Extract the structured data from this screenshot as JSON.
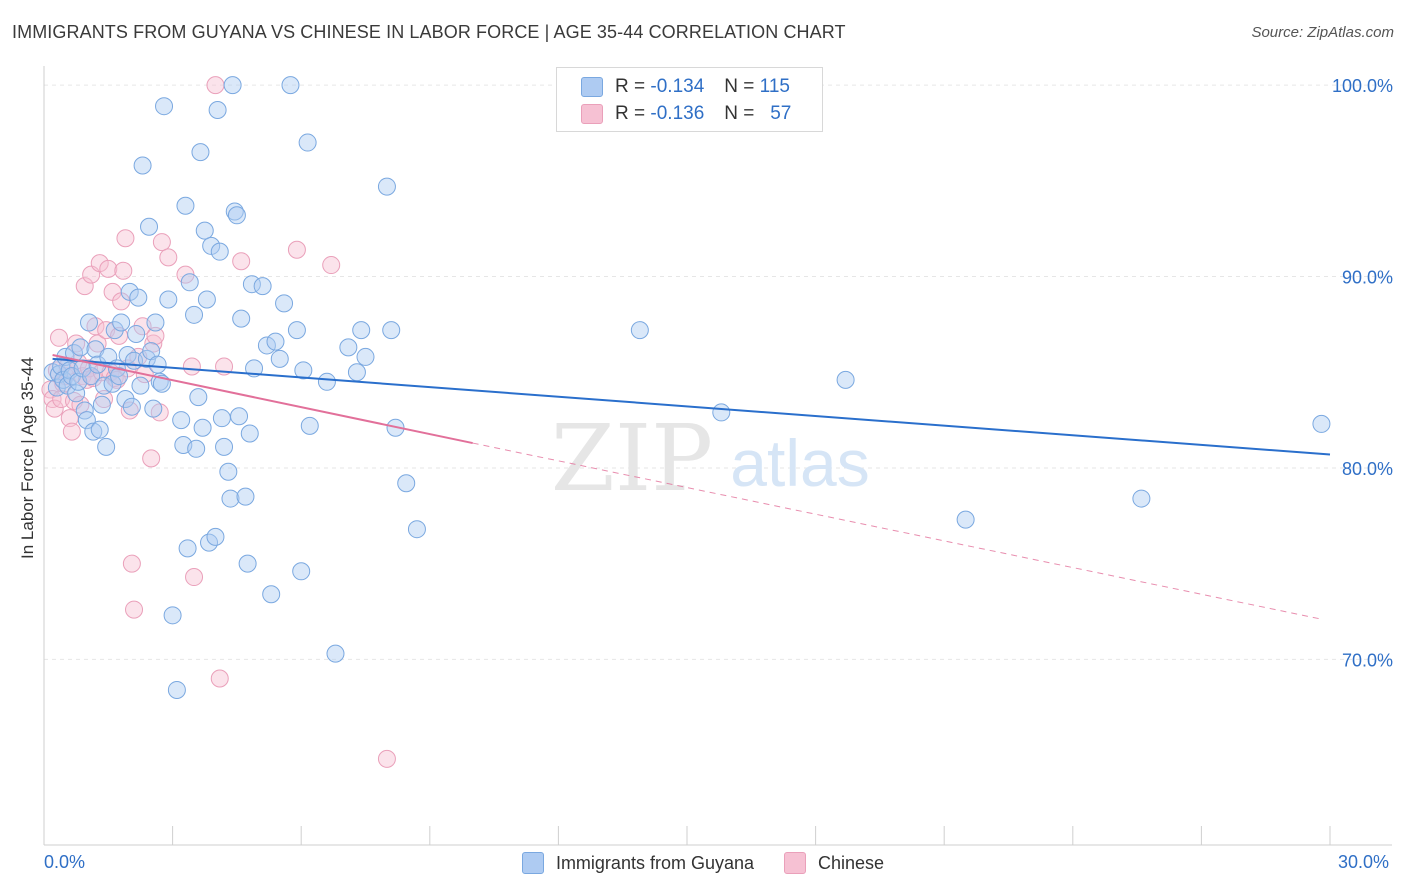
{
  "title": "IMMIGRANTS FROM GUYANA VS CHINESE IN LABOR FORCE | AGE 35-44 CORRELATION CHART",
  "source": "Source: ZipAtlas.com",
  "watermark": {
    "zip": "ZIP",
    "atlas": "atlas"
  },
  "legend": {
    "rows": [
      {
        "r_label": "R =",
        "r_value": "-0.134",
        "n_label": "N =",
        "n_value": "115",
        "color": "#aecbf2"
      },
      {
        "r_label": "R =",
        "r_value": "-0.136",
        "n_label": "N =",
        "n_value": "57",
        "color": "#f6c1d3"
      }
    ]
  },
  "bottom_legend": [
    {
      "label": "Immigrants from Guyana",
      "color": "#aecbf2"
    },
    {
      "label": "Chinese",
      "color": "#f6c1d3"
    }
  ],
  "colors": {
    "blue_fill": "#aecbf2",
    "blue_stroke": "#7aa8e0",
    "blue_line": "#2a6fcc",
    "pink_fill": "#f6c1d3",
    "pink_stroke": "#eaa0ba",
    "pink_line": "#e2709a",
    "axis_text": "#2f6fc6",
    "grid": "#e6e6e6"
  },
  "chart_data": {
    "type": "scatter",
    "title": "IMMIGRANTS FROM GUYANA VS CHINESE IN LABOR FORCE | AGE 35-44 CORRELATION CHART",
    "xlabel": "",
    "ylabel": "In Labor Force | Age 35-44",
    "xlim": [
      0,
      30
    ],
    "ylim": [
      60.3,
      101.0
    ],
    "x_tick_labels": [
      {
        "value": 0,
        "label": "0.0%"
      },
      {
        "value": 30,
        "label": "30.0%"
      }
    ],
    "x_minor_ticks": [
      3,
      6,
      9,
      12,
      15,
      18,
      21,
      24,
      27,
      30
    ],
    "y_ticks": [
      {
        "value": 100,
        "label": "100.0%"
      },
      {
        "value": 90,
        "label": "90.0%"
      },
      {
        "value": 80,
        "label": "80.0%"
      },
      {
        "value": 70,
        "label": "70.0%"
      }
    ],
    "grid": true,
    "series": [
      {
        "name": "Immigrants from Guyana",
        "color": "#aecbf2",
        "trend": {
          "x0": 0.2,
          "y0": 85.7,
          "x1": 30.0,
          "y1": 80.7,
          "style": "solid"
        },
        "points": [
          [
            0.2,
            85.0
          ],
          [
            0.3,
            84.2
          ],
          [
            0.35,
            84.9
          ],
          [
            0.4,
            85.3
          ],
          [
            0.45,
            84.6
          ],
          [
            0.5,
            85.8
          ],
          [
            0.55,
            84.3
          ],
          [
            0.6,
            85.1
          ],
          [
            0.65,
            84.8
          ],
          [
            0.7,
            86.0
          ],
          [
            0.75,
            83.9
          ],
          [
            0.8,
            84.5
          ],
          [
            0.85,
            86.3
          ],
          [
            0.9,
            85.2
          ],
          [
            0.95,
            83.0
          ],
          [
            1.0,
            82.5
          ],
          [
            1.05,
            87.6
          ],
          [
            1.1,
            84.8
          ],
          [
            1.15,
            81.9
          ],
          [
            1.2,
            86.2
          ],
          [
            1.25,
            85.4
          ],
          [
            1.3,
            82.0
          ],
          [
            1.35,
            83.3
          ],
          [
            1.4,
            84.3
          ],
          [
            1.45,
            81.1
          ],
          [
            1.5,
            85.8
          ],
          [
            1.6,
            84.4
          ],
          [
            1.65,
            87.2
          ],
          [
            1.7,
            85.2
          ],
          [
            1.75,
            84.8
          ],
          [
            1.8,
            87.6
          ],
          [
            1.9,
            83.6
          ],
          [
            1.95,
            85.9
          ],
          [
            2.0,
            89.2
          ],
          [
            2.05,
            83.2
          ],
          [
            2.1,
            85.6
          ],
          [
            2.15,
            87.0
          ],
          [
            2.2,
            88.9
          ],
          [
            2.25,
            84.3
          ],
          [
            2.3,
            95.8
          ],
          [
            2.4,
            85.7
          ],
          [
            2.45,
            92.6
          ],
          [
            2.5,
            86.1
          ],
          [
            2.55,
            83.1
          ],
          [
            2.6,
            87.6
          ],
          [
            2.65,
            85.4
          ],
          [
            2.7,
            84.5
          ],
          [
            2.75,
            84.4
          ],
          [
            2.8,
            98.9
          ],
          [
            2.9,
            88.8
          ],
          [
            3.0,
            72.3
          ],
          [
            3.1,
            68.4
          ],
          [
            3.2,
            82.5
          ],
          [
            3.25,
            81.2
          ],
          [
            3.3,
            93.7
          ],
          [
            3.35,
            75.8
          ],
          [
            3.4,
            89.7
          ],
          [
            3.5,
            88.0
          ],
          [
            3.55,
            81.0
          ],
          [
            3.6,
            83.7
          ],
          [
            3.65,
            96.5
          ],
          [
            3.7,
            82.1
          ],
          [
            3.75,
            92.4
          ],
          [
            3.8,
            88.8
          ],
          [
            3.85,
            76.1
          ],
          [
            3.9,
            91.6
          ],
          [
            4.0,
            76.4
          ],
          [
            4.05,
            98.7
          ],
          [
            4.1,
            91.3
          ],
          [
            4.15,
            82.6
          ],
          [
            4.2,
            81.1
          ],
          [
            4.3,
            79.8
          ],
          [
            4.35,
            78.4
          ],
          [
            4.4,
            100.0
          ],
          [
            4.45,
            93.4
          ],
          [
            4.5,
            93.2
          ],
          [
            4.55,
            82.7
          ],
          [
            4.6,
            87.8
          ],
          [
            4.7,
            78.5
          ],
          [
            4.75,
            75.0
          ],
          [
            4.8,
            81.8
          ],
          [
            4.85,
            89.6
          ],
          [
            4.9,
            85.2
          ],
          [
            5.1,
            89.5
          ],
          [
            5.2,
            86.4
          ],
          [
            5.3,
            73.4
          ],
          [
            5.4,
            86.6
          ],
          [
            5.5,
            85.7
          ],
          [
            5.6,
            88.6
          ],
          [
            5.75,
            100.0
          ],
          [
            5.9,
            87.2
          ],
          [
            6.0,
            74.6
          ],
          [
            6.05,
            85.1
          ],
          [
            6.15,
            97.0
          ],
          [
            6.2,
            82.2
          ],
          [
            6.6,
            84.5
          ],
          [
            6.8,
            70.3
          ],
          [
            7.1,
            86.3
          ],
          [
            7.3,
            85.0
          ],
          [
            7.4,
            87.2
          ],
          [
            7.5,
            85.8
          ],
          [
            8.0,
            94.7
          ],
          [
            8.1,
            87.2
          ],
          [
            8.2,
            82.1
          ],
          [
            8.45,
            79.2
          ],
          [
            8.7,
            76.8
          ],
          [
            13.9,
            87.2
          ],
          [
            15.8,
            82.9
          ],
          [
            18.7,
            84.6
          ],
          [
            21.5,
            77.3
          ],
          [
            25.6,
            78.4
          ],
          [
            29.8,
            82.3
          ]
        ]
      },
      {
        "name": "Chinese",
        "color": "#f6c1d3",
        "trend": {
          "x0": 0.2,
          "y0": 85.9,
          "x1": 10.0,
          "y1": 81.3,
          "style": "solid",
          "dash_to": {
            "x": 29.8,
            "y": 72.1
          }
        },
        "points": [
          [
            0.15,
            84.1
          ],
          [
            0.2,
            83.6
          ],
          [
            0.25,
            83.1
          ],
          [
            0.3,
            85.1
          ],
          [
            0.35,
            86.8
          ],
          [
            0.4,
            83.6
          ],
          [
            0.45,
            84.4
          ],
          [
            0.5,
            84.8
          ],
          [
            0.55,
            85.3
          ],
          [
            0.6,
            82.6
          ],
          [
            0.65,
            81.9
          ],
          [
            0.7,
            83.5
          ],
          [
            0.75,
            86.5
          ],
          [
            0.8,
            85.5
          ],
          [
            0.85,
            83.3
          ],
          [
            0.9,
            84.8
          ],
          [
            0.95,
            89.5
          ],
          [
            1.0,
            84.6
          ],
          [
            1.05,
            85.2
          ],
          [
            1.1,
            90.1
          ],
          [
            1.15,
            84.7
          ],
          [
            1.2,
            87.4
          ],
          [
            1.25,
            86.5
          ],
          [
            1.3,
            90.7
          ],
          [
            1.35,
            85.0
          ],
          [
            1.4,
            83.6
          ],
          [
            1.45,
            87.2
          ],
          [
            1.5,
            90.4
          ],
          [
            1.55,
            85.0
          ],
          [
            1.6,
            89.2
          ],
          [
            1.65,
            84.7
          ],
          [
            1.7,
            84.6
          ],
          [
            1.75,
            86.9
          ],
          [
            1.8,
            88.7
          ],
          [
            1.85,
            90.3
          ],
          [
            1.9,
            92.0
          ],
          [
            1.95,
            85.2
          ],
          [
            2.0,
            83.0
          ],
          [
            2.05,
            75.0
          ],
          [
            2.1,
            72.6
          ],
          [
            2.2,
            85.8
          ],
          [
            2.3,
            87.4
          ],
          [
            2.35,
            84.9
          ],
          [
            2.5,
            80.5
          ],
          [
            2.55,
            86.5
          ],
          [
            2.6,
            86.9
          ],
          [
            2.7,
            82.9
          ],
          [
            2.75,
            91.8
          ],
          [
            2.9,
            91.0
          ],
          [
            3.3,
            90.1
          ],
          [
            3.45,
            85.3
          ],
          [
            3.5,
            74.3
          ],
          [
            4.0,
            100.0
          ],
          [
            4.1,
            69.0
          ],
          [
            4.2,
            85.3
          ],
          [
            4.6,
            90.8
          ],
          [
            5.9,
            91.4
          ],
          [
            6.7,
            90.6
          ],
          [
            8.0,
            64.8
          ]
        ]
      }
    ]
  }
}
